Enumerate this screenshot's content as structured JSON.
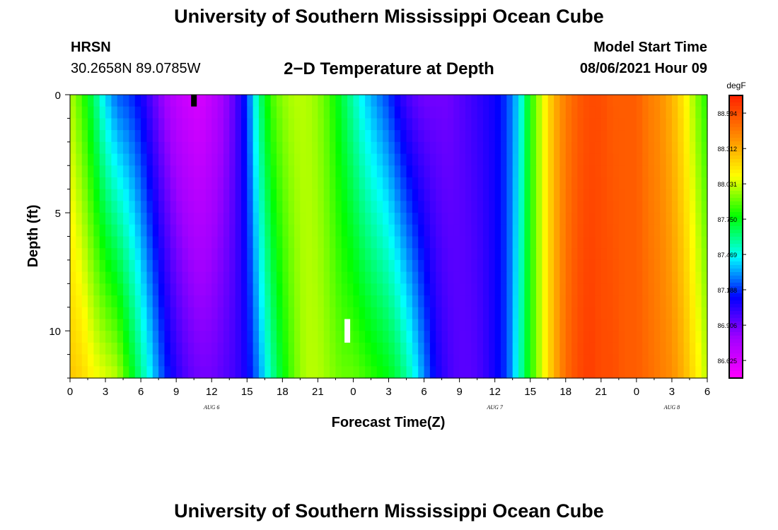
{
  "header": {
    "title": "University of Southern Mississippi Ocean Cube",
    "station": "HRSN",
    "coords": "30.2658N  89.0785W",
    "chart_title": "2−D Temperature at Depth",
    "model_label": "Model Start Time",
    "model_time": "08/06/2021 Hour 09"
  },
  "footer": {
    "title": "University of Southern Mississippi Ocean Cube"
  },
  "colors": {
    "scale": [
      "#ff00ff",
      "#a000ff",
      "#0000ff",
      "#00ffff",
      "#00ff00",
      "#ffff00",
      "#ff8800",
      "#ff2000"
    ]
  },
  "chart_data": {
    "type": "heatmap",
    "title": "2−D Temperature at Depth",
    "xlabel": "Forecast Time(Z)",
    "ylabel": "Depth (ft)",
    "units": "degF",
    "xlim": [
      0,
      54
    ],
    "ylim": [
      0,
      12
    ],
    "x_tick_labels": [
      "0",
      "3",
      "6",
      "9",
      "12",
      "15",
      "18",
      "21",
      "0",
      "3",
      "6",
      "9",
      "12",
      "15",
      "18",
      "21",
      "0",
      "3",
      "6"
    ],
    "y_ticks": [
      0,
      5,
      10
    ],
    "y_tick_labels": [
      "0",
      "5",
      "10"
    ],
    "day_labels": [
      {
        "text": "AUG 6",
        "hour": 12
      },
      {
        "text": "AUG 7",
        "hour": 36
      },
      {
        "text": "AUG 8",
        "hour": 51
      }
    ],
    "colorbar_ticks": [
      "88.594",
      "88.312",
      "88.031",
      "87.750",
      "87.469",
      "87.188",
      "86.906",
      "86.625"
    ],
    "colorbar_range": [
      86.485,
      88.735
    ],
    "markers": [
      {
        "hour": 10.5,
        "depth_top": 0,
        "depth_bottom": 0.5,
        "color": "#000000"
      },
      {
        "hour": 23.5,
        "depth_top": 9.5,
        "depth_bottom": 10.5,
        "color": "#ffffff"
      }
    ],
    "time_keyframes": {
      "hours": [
        0,
        1,
        2,
        3,
        4,
        5,
        6,
        7,
        8,
        9,
        10,
        11,
        12,
        13,
        14,
        15,
        16,
        17,
        18,
        19,
        20,
        21,
        22,
        23,
        24,
        25,
        26,
        27,
        28,
        29,
        30,
        31,
        32,
        33,
        34,
        35,
        36,
        37,
        38,
        39,
        40,
        41,
        42,
        43,
        44,
        45,
        46,
        47,
        48,
        49,
        50,
        51,
        52,
        53,
        54
      ],
      "surface": [
        88.0,
        87.85,
        87.65,
        87.4,
        87.25,
        87.2,
        87.1,
        86.95,
        86.8,
        86.7,
        86.65,
        86.62,
        86.7,
        86.8,
        86.95,
        87.2,
        87.6,
        87.85,
        87.95,
        88.0,
        88.0,
        87.95,
        87.85,
        87.7,
        87.55,
        87.4,
        87.3,
        87.2,
        87.05,
        86.95,
        86.9,
        86.9,
        86.9,
        86.95,
        87.0,
        87.05,
        87.1,
        87.2,
        87.4,
        87.8,
        88.05,
        88.3,
        88.45,
        88.55,
        88.6,
        88.6,
        88.55,
        88.55,
        88.55,
        88.45,
        88.4,
        88.3,
        88.15,
        87.95,
        87.8
      ],
      "bottom": [
        88.25,
        88.2,
        88.1,
        88.05,
        88.0,
        87.8,
        87.6,
        87.4,
        87.2,
        87.05,
        86.95,
        86.9,
        86.9,
        86.95,
        87.0,
        87.1,
        87.3,
        87.55,
        87.75,
        87.9,
        88.0,
        88.0,
        87.95,
        87.9,
        87.9,
        87.85,
        87.8,
        87.75,
        87.65,
        87.5,
        87.3,
        87.1,
        87.0,
        86.95,
        86.95,
        87.0,
        87.1,
        87.2,
        87.5,
        87.8,
        88.05,
        88.3,
        88.5,
        88.6,
        88.65,
        88.6,
        88.6,
        88.55,
        88.55,
        88.5,
        88.45,
        88.4,
        88.3,
        88.15,
        88.0
      ]
    }
  }
}
